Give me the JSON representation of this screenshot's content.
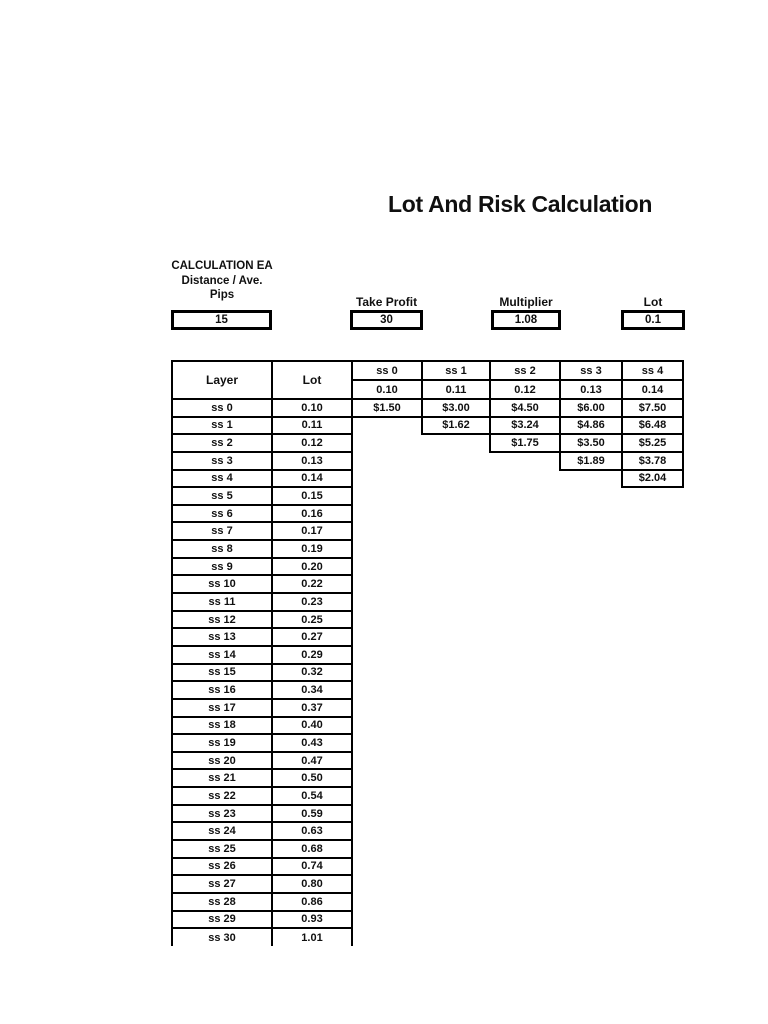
{
  "document": {
    "title": "Lot And Risk Calculation"
  },
  "colors": {
    "ink": "#000000",
    "paper": "#ffffff"
  },
  "parameters": {
    "distance": {
      "label_line1": "CALCULATION EA",
      "label_line2": "Distance / Ave.",
      "label_line3": "Pips",
      "value": "15"
    },
    "take_profit": {
      "label": "Take Profit",
      "value": "30"
    },
    "multiplier": {
      "label": "Multiplier",
      "value": "1.08"
    },
    "lot": {
      "label": "Lot",
      "value": "0.1"
    }
  },
  "table": {
    "layer_header": "Layer",
    "lot_header": "Lot",
    "ss_columns": [
      {
        "name": "ss 0",
        "lot": "0.10"
      },
      {
        "name": "ss 1",
        "lot": "0.11"
      },
      {
        "name": "ss 2",
        "lot": "0.12"
      },
      {
        "name": "ss 3",
        "lot": "0.13"
      },
      {
        "name": "ss 4",
        "lot": "0.14"
      }
    ],
    "rows": [
      {
        "layer": "ss 0",
        "lot": "0.10",
        "profits": [
          "$1.50",
          "$3.00",
          "$4.50",
          "$6.00",
          "$7.50"
        ]
      },
      {
        "layer": "ss 1",
        "lot": "0.11",
        "profits": [
          "",
          "$1.62",
          "$3.24",
          "$4.86",
          "$6.48"
        ]
      },
      {
        "layer": "ss 2",
        "lot": "0.12",
        "profits": [
          "",
          "",
          "$1.75",
          "$3.50",
          "$5.25"
        ]
      },
      {
        "layer": "ss 3",
        "lot": "0.13",
        "profits": [
          "",
          "",
          "",
          "$1.89",
          "$3.78"
        ]
      },
      {
        "layer": "ss 4",
        "lot": "0.14",
        "profits": [
          "",
          "",
          "",
          "",
          "$2.04"
        ]
      },
      {
        "layer": "ss 5",
        "lot": "0.15",
        "profits": []
      },
      {
        "layer": "ss 6",
        "lot": "0.16",
        "profits": []
      },
      {
        "layer": "ss 7",
        "lot": "0.17",
        "profits": []
      },
      {
        "layer": "ss 8",
        "lot": "0.19",
        "profits": []
      },
      {
        "layer": "ss 9",
        "lot": "0.20",
        "profits": []
      },
      {
        "layer": "ss 10",
        "lot": "0.22",
        "profits": []
      },
      {
        "layer": "ss 11",
        "lot": "0.23",
        "profits": []
      },
      {
        "layer": "ss 12",
        "lot": "0.25",
        "profits": []
      },
      {
        "layer": "ss 13",
        "lot": "0.27",
        "profits": []
      },
      {
        "layer": "ss 14",
        "lot": "0.29",
        "profits": []
      },
      {
        "layer": "ss 15",
        "lot": "0.32",
        "profits": []
      },
      {
        "layer": "ss 16",
        "lot": "0.34",
        "profits": []
      },
      {
        "layer": "ss 17",
        "lot": "0.37",
        "profits": []
      },
      {
        "layer": "ss 18",
        "lot": "0.40",
        "profits": []
      },
      {
        "layer": "ss 19",
        "lot": "0.43",
        "profits": []
      },
      {
        "layer": "ss 20",
        "lot": "0.47",
        "profits": []
      },
      {
        "layer": "ss 21",
        "lot": "0.50",
        "profits": []
      },
      {
        "layer": "ss 22",
        "lot": "0.54",
        "profits": []
      },
      {
        "layer": "ss 23",
        "lot": "0.59",
        "profits": []
      },
      {
        "layer": "ss 24",
        "lot": "0.63",
        "profits": []
      },
      {
        "layer": "ss 25",
        "lot": "0.68",
        "profits": []
      },
      {
        "layer": "ss 26",
        "lot": "0.74",
        "profits": []
      },
      {
        "layer": "ss 27",
        "lot": "0.80",
        "profits": []
      },
      {
        "layer": "ss 28",
        "lot": "0.86",
        "profits": []
      },
      {
        "layer": "ss 29",
        "lot": "0.93",
        "profits": []
      },
      {
        "layer": "ss 30",
        "lot": "1.01",
        "profits": []
      }
    ]
  }
}
